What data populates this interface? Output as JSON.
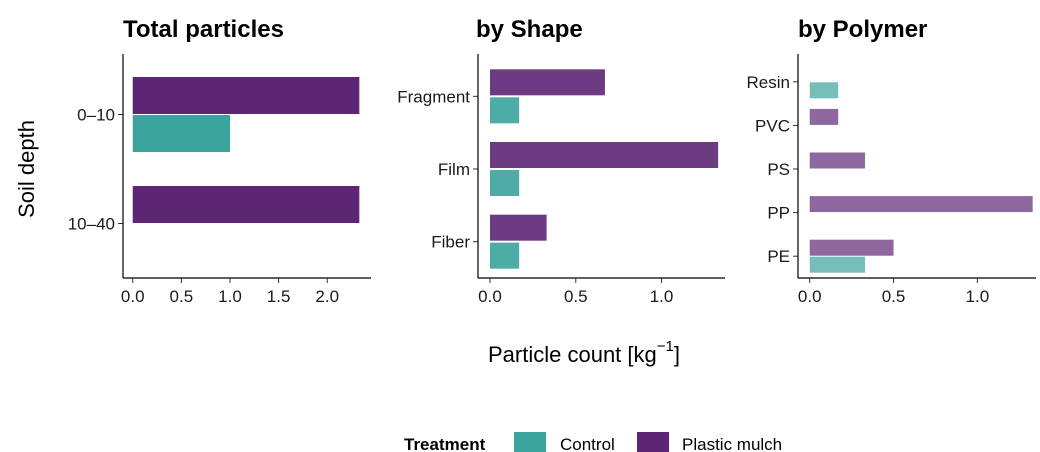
{
  "colors": {
    "control": "#3aa39c",
    "plastic_mulch": "#5c2674"
  },
  "x_axis_title": "Particle count [kg",
  "x_axis_title_sup": "−1",
  "x_axis_title_close": "]",
  "legend": {
    "title": "Treatment",
    "items": [
      {
        "key": "control",
        "label": "Control"
      },
      {
        "key": "plastic_mulch",
        "label": "Plastic mulch"
      }
    ]
  },
  "chart_data": [
    {
      "type": "bar",
      "orientation": "horizontal",
      "title": "Total particles",
      "ylabel": "Soil depth",
      "categories": [
        "0–10",
        "10–40"
      ],
      "xlim": [
        -0.1,
        2.45
      ],
      "xticks": [
        0.0,
        0.5,
        1.0,
        1.5,
        2.0
      ],
      "xtick_labels": [
        "0.0",
        "0.5",
        "1.0",
        "1.5",
        "2.0"
      ],
      "series": [
        {
          "name": "Plastic mulch",
          "key": "plastic_mulch",
          "opacity": 1.0,
          "values": [
            2.33,
            2.33
          ]
        },
        {
          "name": "Control",
          "key": "control",
          "opacity": 1.0,
          "values": [
            1.0,
            null
          ]
        }
      ]
    },
    {
      "type": "bar",
      "orientation": "horizontal",
      "title": "by Shape",
      "categories": [
        "Fragment",
        "Film",
        "Fiber"
      ],
      "xlim": [
        -0.07,
        1.37
      ],
      "xticks": [
        0.0,
        0.5,
        1.0
      ],
      "xtick_labels": [
        "0.0",
        "0.5",
        "1.0"
      ],
      "series": [
        {
          "name": "Plastic mulch",
          "key": "plastic_mulch",
          "opacity": 0.9,
          "values": [
            0.67,
            1.33,
            0.33
          ]
        },
        {
          "name": "Control",
          "key": "control",
          "opacity": 0.9,
          "values": [
            0.17,
            0.17,
            0.17
          ]
        }
      ]
    },
    {
      "type": "bar",
      "orientation": "horizontal",
      "title": "by Polymer",
      "categories": [
        "Resin",
        "PVC",
        "PS",
        "PP",
        "PE"
      ],
      "xlim": [
        -0.07,
        1.35
      ],
      "xticks": [
        0.0,
        0.5,
        1.0
      ],
      "xtick_labels": [
        "0.0",
        "0.5",
        "1.0"
      ],
      "series": [
        {
          "name": "Plastic mulch",
          "key": "plastic_mulch",
          "opacity": 0.7,
          "values": [
            null,
            0.17,
            0.33,
            1.33,
            0.5
          ]
        },
        {
          "name": "Control",
          "key": "control",
          "opacity": 0.7,
          "values": [
            0.17,
            null,
            null,
            null,
            0.33
          ]
        }
      ]
    }
  ]
}
